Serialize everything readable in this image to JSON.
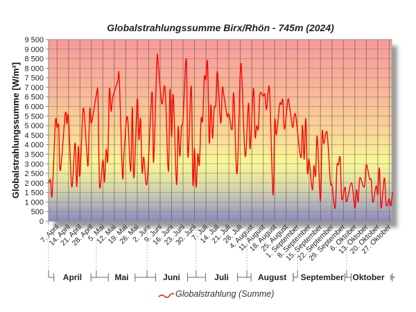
{
  "chart_data": {
    "type": "line",
    "title": "Globalstrahlungssumme Birx/Rhön - 745m (2024)",
    "xlabel": "",
    "ylabel": "Globalstrahlungssumme [W/m²]",
    "ylim": [
      0,
      9500
    ],
    "ytick_step": 500,
    "ytick_labels": [
      "0",
      "500",
      "1 000",
      "1 500",
      "2 000",
      "2 500",
      "3 000",
      "3 500",
      "4 000",
      "4 500",
      "5 000",
      "5 500",
      "6 000",
      "6 500",
      "7 000",
      "7 500",
      "8 000",
      "8 500",
      "9 000",
      "9 500"
    ],
    "grid": true,
    "xlim": [
      "2024-04-02",
      "2024-10-29"
    ],
    "xtick_dates": [
      "2024-04-07",
      "2024-04-14",
      "2024-04-21",
      "2024-04-28",
      "2024-05-05",
      "2024-05-12",
      "2024-05-19",
      "2024-05-26",
      "2024-06-02",
      "2024-06-09",
      "2024-06-16",
      "2024-06-23",
      "2024-06-30",
      "2024-07-07",
      "2024-07-14",
      "2024-07-21",
      "2024-07-28",
      "2024-08-04",
      "2024-08-11",
      "2024-08-18",
      "2024-08-25",
      "2024-09-01",
      "2024-09-08",
      "2024-09-15",
      "2024-09-22",
      "2024-09-29",
      "2024-10-06",
      "2024-10-13",
      "2024-10-20",
      "2024-10-27"
    ],
    "xtick_labels": [
      "7. April",
      "14. April",
      "21. April",
      "28. April",
      "5. Mai",
      "12. Mai",
      "19. Mai",
      "26. Mai",
      "2. Juni",
      "9. Juni",
      "16. Juni",
      "23. Juni",
      "30. Juni",
      "7. Juli",
      "14. Juli",
      "21. Juli",
      "28. Juli",
      "4. August",
      "11. August",
      "18. August",
      "25. August",
      "1. September",
      "8. September",
      "15. September",
      "22. September",
      "29. September",
      "6. Oktober",
      "13. Oktober",
      "20. Oktober",
      "27. Oktober"
    ],
    "months": [
      {
        "label": "April",
        "start": "2024-04-01"
      },
      {
        "label": "Mai",
        "start": "2024-05-01"
      },
      {
        "label": "Juni",
        "start": "2024-06-01"
      },
      {
        "label": "Juli",
        "start": "2024-07-01"
      },
      {
        "label": "August",
        "start": "2024-08-01"
      },
      {
        "label": "September",
        "start": "2024-09-01"
      },
      {
        "label": "Oktober",
        "start": "2024-10-01"
      }
    ],
    "legend": {
      "position": "bottom",
      "entries": [
        "Globalstrahlung (Summe)"
      ]
    },
    "series": [
      {
        "name": "Globalstrahlung (Summe)",
        "color": "#ff0000",
        "x": [
          "2024-04-02",
          "2024-04-03",
          "2024-04-04",
          "2024-04-06",
          "2024-04-07",
          "2024-04-08",
          "2024-04-09",
          "2024-04-12",
          "2024-04-13",
          "2024-04-14",
          "2024-04-16",
          "2024-04-18",
          "2024-04-19",
          "2024-04-20",
          "2024-04-21",
          "2024-04-23",
          "2024-04-25",
          "2024-04-26",
          "2024-04-27",
          "2024-04-28",
          "2024-05-01",
          "2024-05-02",
          "2024-05-03",
          "2024-05-05",
          "2024-05-06",
          "2024-05-07",
          "2024-05-08",
          "2024-05-09",
          "2024-05-10",
          "2024-05-11",
          "2024-05-14",
          "2024-05-15",
          "2024-05-17",
          "2024-05-18",
          "2024-05-20",
          "2024-05-22",
          "2024-05-23",
          "2024-05-24",
          "2024-05-26",
          "2024-05-27",
          "2024-05-28",
          "2024-05-29",
          "2024-05-30",
          "2024-06-01",
          "2024-06-04",
          "2024-06-05",
          "2024-06-07",
          "2024-06-08",
          "2024-06-10",
          "2024-06-12",
          "2024-06-14",
          "2024-06-15",
          "2024-06-16",
          "2024-06-17",
          "2024-06-19",
          "2024-06-20",
          "2024-06-21",
          "2024-06-22",
          "2024-06-23",
          "2024-06-25",
          "2024-06-26",
          "2024-06-28",
          "2024-06-29",
          "2024-06-30",
          "2024-07-01",
          "2024-07-02",
          "2024-07-03",
          "2024-07-04",
          "2024-07-05",
          "2024-07-06",
          "2024-07-07",
          "2024-07-08",
          "2024-07-09",
          "2024-07-10",
          "2024-07-11",
          "2024-07-12",
          "2024-07-13",
          "2024-07-14",
          "2024-07-16",
          "2024-07-17",
          "2024-07-18",
          "2024-07-20",
          "2024-07-21",
          "2024-07-23",
          "2024-07-24",
          "2024-07-26",
          "2024-07-28",
          "2024-07-29",
          "2024-07-31",
          "2024-08-02",
          "2024-08-03",
          "2024-08-05",
          "2024-08-06",
          "2024-08-07",
          "2024-08-08",
          "2024-08-09",
          "2024-08-11",
          "2024-08-12",
          "2024-08-13",
          "2024-08-14",
          "2024-08-15",
          "2024-08-17",
          "2024-08-18",
          "2024-08-19",
          "2024-08-21",
          "2024-08-22",
          "2024-08-23",
          "2024-08-24",
          "2024-08-26",
          "2024-08-27",
          "2024-08-29",
          "2024-08-30",
          "2024-08-31",
          "2024-09-03",
          "2024-09-04",
          "2024-09-05",
          "2024-09-06",
          "2024-09-07",
          "2024-09-08",
          "2024-09-10",
          "2024-09-11",
          "2024-09-12",
          "2024-09-13",
          "2024-09-15",
          "2024-09-16",
          "2024-09-17",
          "2024-09-19",
          "2024-09-21",
          "2024-09-22",
          "2024-09-24",
          "2024-09-25",
          "2024-09-26",
          "2024-09-27",
          "2024-09-28",
          "2024-09-30",
          "2024-10-01",
          "2024-10-04",
          "2024-10-06",
          "2024-10-07",
          "2024-10-08",
          "2024-10-09",
          "2024-10-11",
          "2024-10-12",
          "2024-10-13",
          "2024-10-15",
          "2024-10-16",
          "2024-10-17",
          "2024-10-19",
          "2024-10-20",
          "2024-10-21",
          "2024-10-22",
          "2024-10-24",
          "2024-10-25",
          "2024-10-26",
          "2024-10-27",
          "2024-10-28",
          "2024-10-29"
        ],
        "y": [
          2000,
          2150,
          1380,
          5170,
          4900,
          4950,
          2650,
          5600,
          5100,
          5400,
          1800,
          4100,
          1800,
          3900,
          2380,
          5900,
          3830,
          2960,
          5850,
          5130,
          6590,
          6550,
          1820,
          3200,
          2050,
          3750,
          3200,
          6890,
          5750,
          6450,
          7300,
          7470,
          2360,
          3710,
          5460,
          2600,
          5950,
          2260,
          6380,
          4270,
          5360,
          2550,
          3350,
          2000,
          6750,
          3090,
          8370,
          8060,
          6140,
          6950,
          2600,
          6890,
          4420,
          6590,
          1930,
          4930,
          3390,
          4900,
          5330,
          8480,
          3350,
          7060,
          1930,
          3810,
          1780,
          3510,
          2960,
          5330,
          5270,
          7510,
          7400,
          8280,
          4110,
          6090,
          4340,
          5900,
          6100,
          7810,
          5130,
          6950,
          6550,
          5490,
          5610,
          4800,
          6660,
          2480,
          7840,
          7400,
          3390,
          6170,
          3790,
          6950,
          4420,
          4990,
          4850,
          6630,
          6550,
          6630,
          5830,
          6750,
          6600,
          1380,
          5240,
          4510,
          6090,
          6100,
          6330,
          4800,
          6330,
          6050,
          4910,
          5510,
          5420,
          3320,
          5020,
          3230,
          5360,
          2540,
          3230,
          1630,
          2900,
          2380,
          4440,
          1040,
          4630,
          4050,
          4630,
          2090,
          1880,
          680,
          2840,
          2960,
          3300,
          1160,
          1780,
          1020,
          2010,
          680,
          1650,
          1000,
          2260,
          1850,
          1880,
          2960,
          2210,
          2140,
          990,
          1850,
          1390,
          2780,
          680,
          2260,
          920,
          870,
          1180,
          800,
          1530
        ]
      }
    ]
  }
}
